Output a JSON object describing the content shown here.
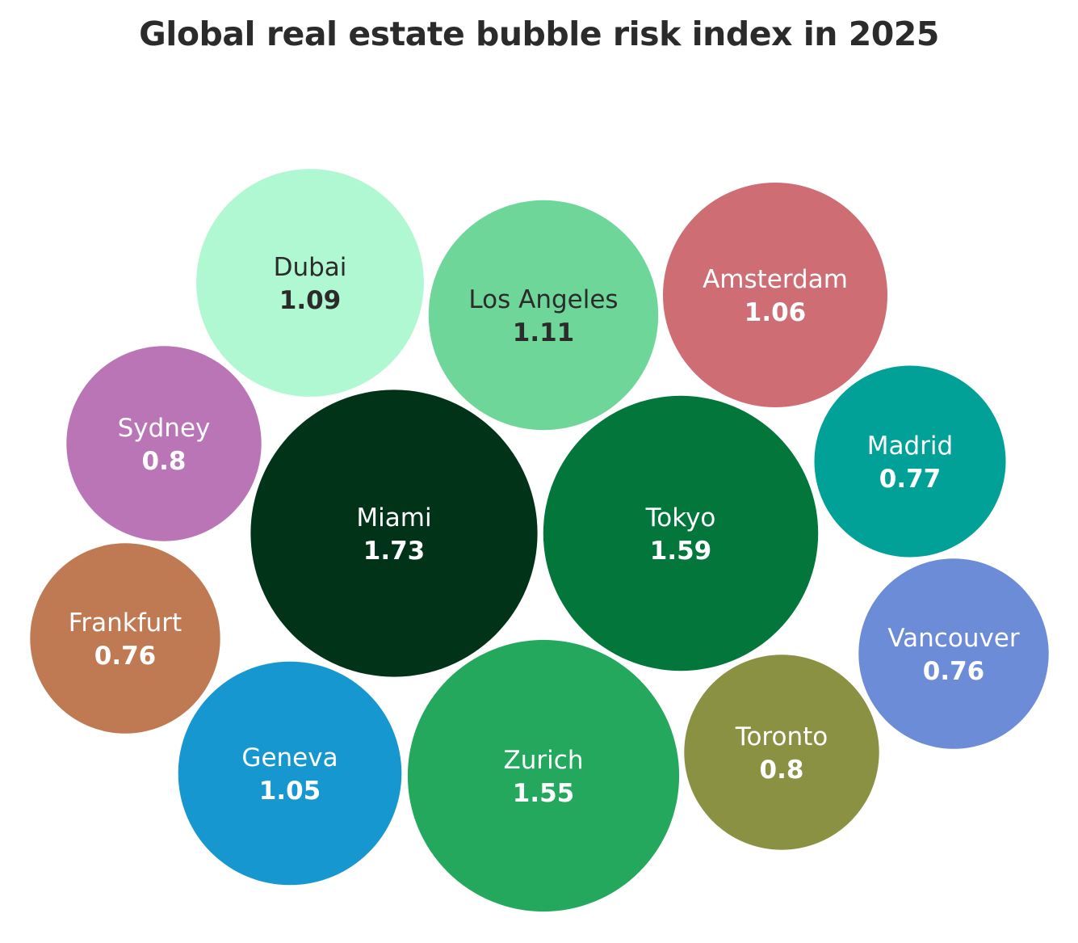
{
  "chart_data": {
    "type": "bubble",
    "title": "Global real estate bubble risk index in 2025",
    "series": [
      {
        "name": "Miami",
        "value": 1.73,
        "label": "1.73",
        "color": "#013319",
        "text_color": "#ffffff"
      },
      {
        "name": "Tokyo",
        "value": 1.59,
        "label": "1.59",
        "color": "#02763b",
        "text_color": "#ffffff"
      },
      {
        "name": "Zurich",
        "value": 1.55,
        "label": "1.55",
        "color": "#24a85e",
        "text_color": "#ffffff"
      },
      {
        "name": "Los Angeles",
        "value": 1.11,
        "label": "1.11",
        "color": "#6fd69a",
        "text_color": "#2b2b2b"
      },
      {
        "name": "Dubai",
        "value": 1.09,
        "label": "1.09",
        "color": "#aff8d2",
        "text_color": "#2b2b2b"
      },
      {
        "name": "Amsterdam",
        "value": 1.06,
        "label": "1.06",
        "color": "#cf6d75",
        "text_color": "#ffffff"
      },
      {
        "name": "Geneva",
        "value": 1.05,
        "label": "1.05",
        "color": "#1797d0",
        "text_color": "#ffffff"
      },
      {
        "name": "Sydney",
        "value": 0.8,
        "label": "0.8",
        "color": "#b975b5",
        "text_color": "#ffffff"
      },
      {
        "name": "Toronto",
        "value": 0.8,
        "label": "0.8",
        "color": "#8a9143",
        "text_color": "#ffffff"
      },
      {
        "name": "Madrid",
        "value": 0.77,
        "label": "0.77",
        "color": "#01a197",
        "text_color": "#ffffff"
      },
      {
        "name": "Frankfurt",
        "value": 0.76,
        "label": "0.76",
        "color": "#c07a53",
        "text_color": "#ffffff"
      },
      {
        "name": "Vancouver",
        "value": 0.76,
        "label": "0.76",
        "color": "#6c8cd7",
        "text_color": "#ffffff"
      }
    ]
  }
}
